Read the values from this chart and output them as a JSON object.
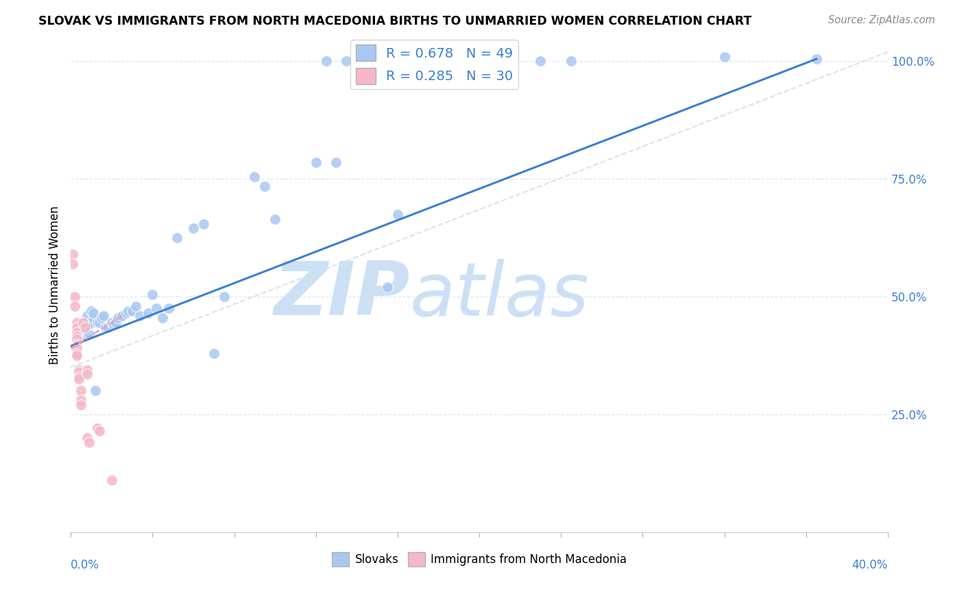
{
  "title": "SLOVAK VS IMMIGRANTS FROM NORTH MACEDONIA BIRTHS TO UNMARRIED WOMEN CORRELATION CHART",
  "source": "Source: ZipAtlas.com",
  "ylabel": "Births to Unmarried Women",
  "xlim": [
    0.0,
    0.4
  ],
  "ylim": [
    0.0,
    1.05
  ],
  "r_slovak": 0.678,
  "n_slovak": 49,
  "r_north_mac": 0.285,
  "n_north_mac": 30,
  "slovak_color": "#a8c8f0",
  "north_mac_color": "#f4b8c8",
  "trend_slovak_color": "#3a7fd5",
  "trend_north_mac_color": "#e8a0b0",
  "watermark_zip_color": "#cce0f5",
  "watermark_atlas_color": "#cce0f5",
  "slovak_x": [
    0.005,
    0.005,
    0.006,
    0.007,
    0.007,
    0.008,
    0.008,
    0.009,
    0.009,
    0.01,
    0.01,
    0.011,
    0.011,
    0.012,
    0.013,
    0.014,
    0.015,
    0.016,
    0.017,
    0.018,
    0.02,
    0.021,
    0.022,
    0.023,
    0.025,
    0.027,
    0.028,
    0.03,
    0.032,
    0.034,
    0.038,
    0.04,
    0.042,
    0.045,
    0.048,
    0.052,
    0.06,
    0.065,
    0.07,
    0.075,
    0.09,
    0.095,
    0.1,
    0.12,
    0.13,
    0.155,
    0.16,
    0.32,
    0.365
  ],
  "slovak_y": [
    0.425,
    0.415,
    0.435,
    0.445,
    0.43,
    0.44,
    0.46,
    0.42,
    0.44,
    0.445,
    0.47,
    0.455,
    0.465,
    0.3,
    0.445,
    0.445,
    0.455,
    0.46,
    0.435,
    0.435,
    0.445,
    0.44,
    0.445,
    0.455,
    0.46,
    0.465,
    0.47,
    0.47,
    0.48,
    0.46,
    0.465,
    0.505,
    0.475,
    0.455,
    0.475,
    0.625,
    0.645,
    0.655,
    0.38,
    0.5,
    0.755,
    0.735,
    0.665,
    0.785,
    0.785,
    0.52,
    0.675,
    1.01,
    1.005
  ],
  "top_slovak_x": [
    0.125,
    0.135,
    0.14,
    0.15,
    0.155,
    0.165,
    0.175,
    0.185,
    0.195,
    0.215,
    0.23,
    0.245
  ],
  "top_slovak_y": [
    1.0,
    1.0,
    1.0,
    1.0,
    1.0,
    1.0,
    1.0,
    1.0,
    1.0,
    1.0,
    1.0,
    1.0
  ],
  "north_mac_x": [
    0.001,
    0.001,
    0.002,
    0.002,
    0.003,
    0.003,
    0.003,
    0.003,
    0.003,
    0.003,
    0.003,
    0.003,
    0.003,
    0.003,
    0.004,
    0.004,
    0.004,
    0.004,
    0.005,
    0.005,
    0.005,
    0.006,
    0.007,
    0.008,
    0.008,
    0.008,
    0.009,
    0.013,
    0.014,
    0.02
  ],
  "north_mac_y": [
    0.59,
    0.57,
    0.5,
    0.48,
    0.445,
    0.435,
    0.425,
    0.415,
    0.41,
    0.4,
    0.395,
    0.39,
    0.38,
    0.375,
    0.345,
    0.34,
    0.33,
    0.325,
    0.3,
    0.28,
    0.27,
    0.445,
    0.435,
    0.345,
    0.335,
    0.2,
    0.19,
    0.22,
    0.215,
    0.11
  ],
  "trend_slovak_x0": 0.0,
  "trend_slovak_y0": 0.395,
  "trend_slovak_x1": 0.365,
  "trend_slovak_y1": 1.005,
  "trend_nm_x0": 0.0,
  "trend_nm_y0": 0.39,
  "trend_nm_x1": 0.02,
  "trend_nm_y1": 0.445
}
